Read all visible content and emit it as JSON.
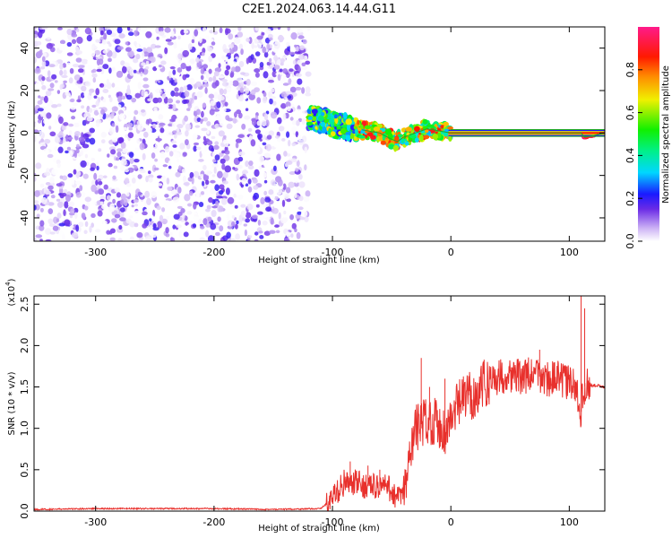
{
  "title": "C2E1.2024.063.14.44.G11",
  "colors": {
    "text": "#000000",
    "snr_line": "#e8302c",
    "frequency_trace": "#22aa22",
    "scatter_purple": "#7b22e6",
    "scatter_light": "#cdb3f5"
  },
  "chart_data": [
    {
      "type": "heatmap",
      "title": "C2E1.2024.063.14.44.G11",
      "xlabel": "Height of straight line (km)",
      "ylabel": "Frequency (Hz)",
      "xlim": [
        -352,
        130
      ],
      "ylim": [
        -51,
        50
      ],
      "x_ticks": [
        -300,
        -200,
        -100,
        0,
        100
      ],
      "x_tick_labels": [
        "-300",
        "-200",
        "-100",
        "0",
        "100"
      ],
      "y_ticks": [
        -40,
        -20,
        0,
        20,
        40
      ],
      "y_tick_labels": [
        "-40",
        "-20",
        "0",
        "20",
        "40"
      ],
      "colorbar": {
        "label": "Normalized spectral amplitude",
        "range": [
          0,
          1
        ],
        "ticks": [
          0.0,
          0.2,
          0.4,
          0.6,
          0.8
        ],
        "tick_labels": [
          "0.0",
          "0.2",
          "0.4",
          "0.6",
          "0.8"
        ]
      },
      "regions": [
        {
          "x": [
            -352,
            -120
          ],
          "y": [
            -51,
            50
          ],
          "pattern": "broadband noise",
          "amplitude": [
            0.0,
            0.2
          ]
        },
        {
          "x": [
            -120,
            -80
          ],
          "y": [
            -5,
            13
          ],
          "pattern": "narrowing signal",
          "amplitude": [
            0.2,
            0.7
          ]
        },
        {
          "x": [
            -80,
            0
          ],
          "y": [
            -7,
            6
          ],
          "pattern": "converging signal",
          "amplitude": [
            0.3,
            0.9
          ]
        },
        {
          "x": [
            0,
            130
          ],
          "y": [
            -1,
            1
          ],
          "pattern": "carrier line",
          "amplitude": [
            0.9,
            1.0
          ]
        }
      ],
      "center_frequency": [
        [
          -120,
          8
        ],
        [
          -110,
          6
        ],
        [
          -100,
          4
        ],
        [
          -90,
          3
        ],
        [
          -80,
          2
        ],
        [
          -70,
          1
        ],
        [
          -60,
          0
        ],
        [
          -50,
          -3
        ],
        [
          -45,
          -4
        ],
        [
          -40,
          -2
        ],
        [
          -30,
          0
        ],
        [
          -20,
          2
        ],
        [
          -10,
          1
        ],
        [
          0,
          0
        ],
        [
          20,
          0
        ],
        [
          60,
          0
        ],
        [
          100,
          0
        ],
        [
          110,
          0
        ],
        [
          113,
          -2
        ],
        [
          130,
          0
        ]
      ]
    },
    {
      "type": "line",
      "xlabel": "Height of straight line (km)",
      "ylabel": "SNR (10 * v/v)",
      "yunit_label": "(x10",
      "yunit_exponent": "4",
      "yunit_close": ")",
      "xlim": [
        -352,
        130
      ],
      "ylim": [
        0,
        2.6
      ],
      "x_ticks": [
        -300,
        -200,
        -100,
        0,
        100
      ],
      "x_tick_labels": [
        "-300",
        "-200",
        "-100",
        "0",
        "100"
      ],
      "y_ticks": [
        0.0,
        0.5,
        1.0,
        1.5,
        2.0,
        2.5
      ],
      "y_tick_labels": [
        "0.0",
        "0.5",
        "1.0",
        "1.5",
        "2.0",
        "2.5"
      ],
      "series": [
        {
          "values": [
            [
              -352,
              0.02
            ],
            [
              -300,
              0.03
            ],
            [
              -250,
              0.03
            ],
            [
              -200,
              0.03
            ],
            [
              -150,
              0.02
            ],
            [
              -110,
              0.03
            ],
            [
              -100,
              0.15
            ],
            [
              -95,
              0.25
            ],
            [
              -90,
              0.35
            ],
            [
              -85,
              0.3
            ],
            [
              -80,
              0.35
            ],
            [
              -75,
              0.3
            ],
            [
              -70,
              0.32
            ],
            [
              -65,
              0.3
            ],
            [
              -60,
              0.3
            ],
            [
              -55,
              0.3
            ],
            [
              -50,
              0.25
            ],
            [
              -45,
              0.15
            ],
            [
              -40,
              0.2
            ],
            [
              -37,
              0.4
            ],
            [
              -35,
              0.6
            ],
            [
              -33,
              0.8
            ],
            [
              -30,
              1.0
            ],
            [
              -25,
              1.05
            ],
            [
              -20,
              1.1
            ],
            [
              -15,
              1.1
            ],
            [
              -10,
              1.05
            ],
            [
              -5,
              0.95
            ],
            [
              0,
              1.1
            ],
            [
              5,
              1.25
            ],
            [
              10,
              1.35
            ],
            [
              15,
              1.4
            ],
            [
              20,
              1.4
            ],
            [
              25,
              1.5
            ],
            [
              30,
              1.55
            ],
            [
              35,
              1.6
            ],
            [
              40,
              1.62
            ],
            [
              50,
              1.65
            ],
            [
              60,
              1.62
            ],
            [
              70,
              1.65
            ],
            [
              80,
              1.6
            ],
            [
              90,
              1.6
            ],
            [
              100,
              1.55
            ],
            [
              105,
              1.5
            ],
            [
              108,
              1.35
            ],
            [
              110,
              1.2
            ],
            [
              112,
              1.5
            ],
            [
              115,
              1.52
            ],
            [
              120,
              1.52
            ],
            [
              130,
              1.5
            ]
          ],
          "spikes": [
            [
              -85,
              0.6
            ],
            [
              -70,
              0.55
            ],
            [
              -60,
              0.5
            ],
            [
              -25,
              1.85
            ],
            [
              -18,
              1.5
            ],
            [
              -5,
              1.6
            ],
            [
              15,
              1.45
            ],
            [
              75,
              1.95
            ],
            [
              88,
              1.6
            ],
            [
              98,
              1.75
            ],
            [
              110,
              2.6
            ],
            [
              113,
              2.45
            ]
          ]
        }
      ]
    }
  ]
}
